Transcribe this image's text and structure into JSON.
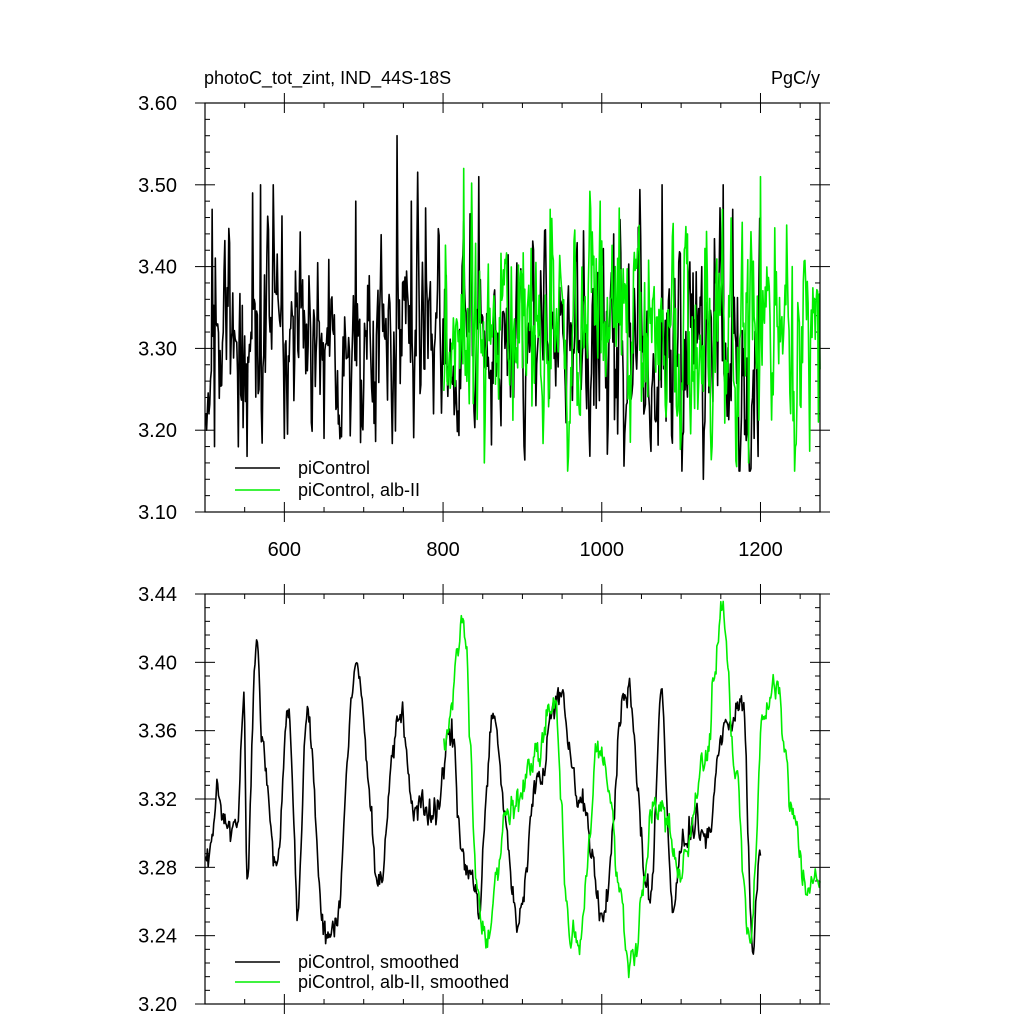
{
  "chart_data": [
    {
      "type": "line",
      "title_left": "photoC_tot_zint, IND_44S-18S",
      "title_right": "PgC/y",
      "xlim": [
        500,
        1275
      ],
      "ylim": [
        3.1,
        3.6
      ],
      "x_ticks": [
        "600",
        "800",
        "1000",
        "1200"
      ],
      "y_ticks": [
        "3.10",
        "3.20",
        "3.30",
        "3.40",
        "3.50",
        "3.60"
      ],
      "x_tick_values": [
        600,
        800,
        1000,
        1200
      ],
      "y_tick_values": [
        3.1,
        3.2,
        3.3,
        3.4,
        3.5,
        3.6
      ],
      "legend_position": "bottom-left",
      "series": [
        {
          "name": "piControl",
          "color": "#000000",
          "x_start": 501,
          "x_end": 1200,
          "mean": 3.31,
          "std": 0.065,
          "anchors": [
            [
              502,
              3.2
            ],
            [
              509,
              3.47
            ],
            [
              512,
              3.18
            ],
            [
              560,
              3.49
            ],
            [
              570,
              3.5
            ],
            [
              586,
              3.5
            ],
            [
              600,
              3.19
            ],
            [
              650,
              3.19
            ],
            [
              690,
              3.48
            ],
            [
              742,
              3.56
            ],
            [
              760,
              3.48
            ],
            [
              845,
              3.51
            ],
            [
              1015,
              3.44
            ],
            [
              1076,
              3.5
            ],
            [
              1128,
              3.14
            ],
            [
              1153,
              3.5
            ],
            [
              1165,
              3.47
            ],
            [
              1192,
              3.19
            ]
          ]
        },
        {
          "name": "piControl, alb-II",
          "color": "#00ee00",
          "x_start": 801,
          "x_end": 1275,
          "mean": 3.31,
          "std": 0.065,
          "anchors": [
            [
              826,
              3.52
            ],
            [
              852,
              3.16
            ],
            [
              935,
              3.47
            ],
            [
              998,
              3.48
            ],
            [
              1152,
              3.47
            ],
            [
              1185,
              3.16
            ],
            [
              1200,
              3.51
            ],
            [
              1240,
              3.4
            ],
            [
              1273,
              3.21
            ]
          ]
        }
      ]
    },
    {
      "type": "line",
      "xlim": [
        500,
        1275
      ],
      "ylim": [
        3.2,
        3.44
      ],
      "y_ticks": [
        "3.20",
        "3.24",
        "3.28",
        "3.32",
        "3.36",
        "3.40",
        "3.44"
      ],
      "y_tick_values": [
        3.2,
        3.24,
        3.28,
        3.32,
        3.36,
        3.4,
        3.44
      ],
      "x_tick_values": [
        600,
        800,
        1000,
        1200
      ],
      "legend_position": "bottom-left",
      "series": [
        {
          "name": "piControl, smoothed",
          "color": "#000000",
          "x_start": 501,
          "x_end": 1200,
          "anchors": [
            [
              501,
              3.28
            ],
            [
              515,
              3.31
            ],
            [
              540,
              3.3
            ],
            [
              549,
              3.37
            ],
            [
              553,
              3.27
            ],
            [
              565,
              3.42
            ],
            [
              572,
              3.35
            ],
            [
              590,
              3.28
            ],
            [
              605,
              3.37
            ],
            [
              616,
              3.26
            ],
            [
              630,
              3.37
            ],
            [
              650,
              3.24
            ],
            [
              665,
              3.25
            ],
            [
              690,
              3.4
            ],
            [
              720,
              3.27
            ],
            [
              745,
              3.37
            ],
            [
              765,
              3.31
            ],
            [
              790,
              3.31
            ],
            [
              810,
              3.36
            ],
            [
              826,
              3.28
            ],
            [
              845,
              3.26
            ],
            [
              862,
              3.37
            ],
            [
              895,
              3.25
            ],
            [
              920,
              3.33
            ],
            [
              945,
              3.38
            ],
            [
              975,
              3.32
            ],
            [
              1002,
              3.25
            ],
            [
              1030,
              3.39
            ],
            [
              1062,
              3.26
            ],
            [
              1075,
              3.38
            ],
            [
              1090,
              3.26
            ],
            [
              1105,
              3.3
            ],
            [
              1135,
              3.3
            ],
            [
              1155,
              3.36
            ],
            [
              1178,
              3.38
            ],
            [
              1190,
              3.24
            ],
            [
              1200,
              3.29
            ]
          ]
        },
        {
          "name": "piControl, alb-II, smoothed",
          "color": "#00ee00",
          "x_start": 801,
          "x_end": 1275,
          "anchors": [
            [
              801,
              3.35
            ],
            [
              826,
              3.42
            ],
            [
              845,
              3.26
            ],
            [
              852,
              3.23
            ],
            [
              880,
              3.31
            ],
            [
              913,
              3.34
            ],
            [
              940,
              3.38
            ],
            [
              960,
              3.24
            ],
            [
              970,
              3.23
            ],
            [
              998,
              3.35
            ],
            [
              1038,
              3.23
            ],
            [
              1070,
              3.32
            ],
            [
              1100,
              3.28
            ],
            [
              1130,
              3.34
            ],
            [
              1152,
              3.43
            ],
            [
              1170,
              3.33
            ],
            [
              1186,
              3.23
            ],
            [
              1205,
              3.37
            ],
            [
              1220,
              3.39
            ],
            [
              1240,
              3.32
            ],
            [
              1258,
              3.27
            ],
            [
              1275,
              3.27
            ]
          ]
        }
      ]
    }
  ]
}
